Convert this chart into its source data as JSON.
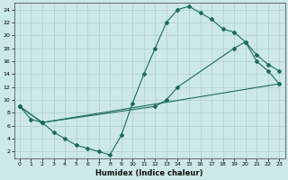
{
  "xlabel": "Humidex (Indice chaleur)",
  "background_color": "#cce8e8",
  "grid_color": "#b0cccc",
  "line_color": "#1a6b5a",
  "xlim": [
    -0.5,
    23.5
  ],
  "ylim": [
    1,
    25
  ],
  "xticks": [
    0,
    1,
    2,
    3,
    4,
    5,
    6,
    7,
    8,
    9,
    10,
    11,
    12,
    13,
    14,
    15,
    16,
    17,
    18,
    19,
    20,
    21,
    22,
    23
  ],
  "yticks": [
    2,
    4,
    6,
    8,
    10,
    12,
    14,
    16,
    18,
    20,
    22,
    24
  ],
  "line1_x": [
    0,
    1,
    2,
    3,
    4,
    5,
    6,
    7,
    8,
    9,
    10,
    11,
    12,
    13,
    14,
    15,
    16,
    17,
    18,
    19,
    20,
    21,
    22,
    23
  ],
  "line1_y": [
    9,
    7,
    6.5,
    5,
    4,
    3,
    2.5,
    2,
    1.5,
    4.5,
    9.5,
    14,
    18,
    22,
    24,
    24.5,
    23.5,
    22.5,
    21,
    20.5,
    19,
    16,
    14.5,
    12.5
  ],
  "line2_x": [
    0,
    2,
    23
  ],
  "line2_y": [
    9,
    6.5,
    12.5
  ],
  "line3_x": [
    0,
    2,
    12,
    13,
    14,
    19,
    20,
    21,
    22,
    23
  ],
  "line3_y": [
    9,
    6.5,
    9,
    10,
    12,
    18,
    19,
    17,
    15.5,
    14.5
  ]
}
